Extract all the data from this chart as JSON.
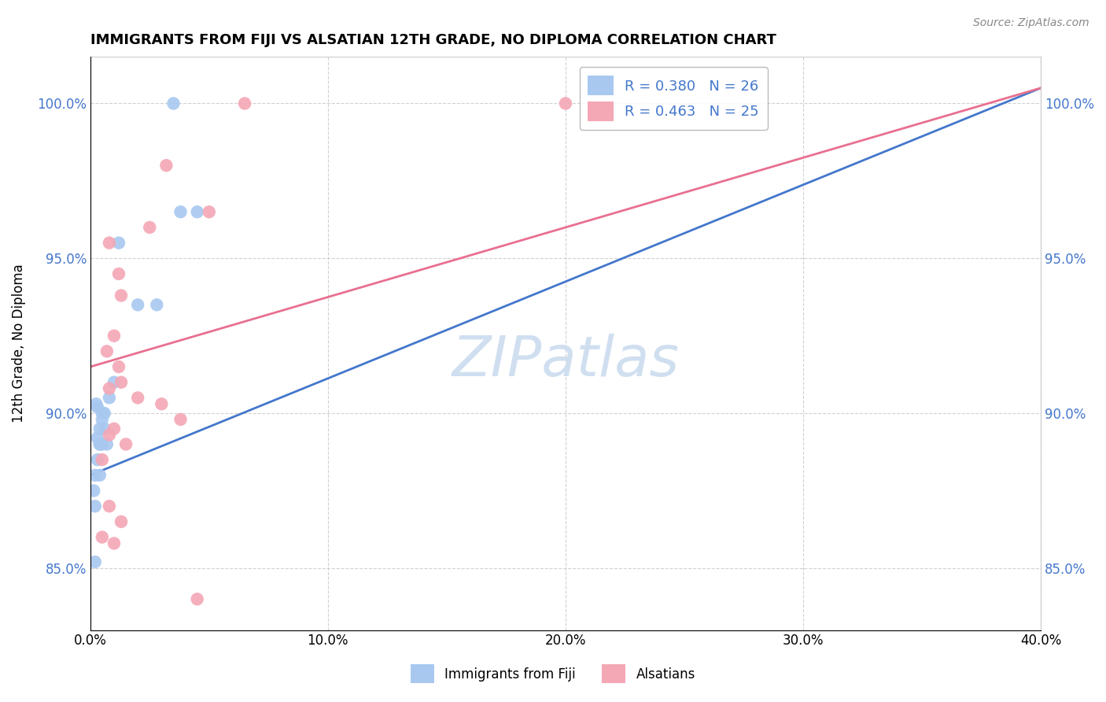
{
  "title": "IMMIGRANTS FROM FIJI VS ALSATIAN 12TH GRADE, NO DIPLOMA CORRELATION CHART",
  "source": "Source: ZipAtlas.com",
  "ylabel": "12th Grade, No Diploma",
  "x_legend_label1": "Immigrants from Fiji",
  "x_legend_label2": "Alsatians",
  "xlim": [
    0.0,
    40.0
  ],
  "ylim": [
    83.0,
    101.5
  ],
  "x_ticks": [
    0.0,
    10.0,
    20.0,
    30.0,
    40.0
  ],
  "y_ticks": [
    85.0,
    90.0,
    95.0,
    100.0
  ],
  "y_tick_labels": [
    "85.0%",
    "90.0%",
    "95.0%",
    "100.0%"
  ],
  "x_tick_labels": [
    "0.0%",
    "10.0%",
    "20.0%",
    "30.0%",
    "40.0%"
  ],
  "R1": 0.38,
  "N1": 26,
  "R2": 0.463,
  "N2": 25,
  "color1": "#a8c8f0",
  "color2": "#f4a7b5",
  "line_color1": "#4477cc",
  "line_color2": "#e87090",
  "fiji_x": [
    3.5,
    3.8,
    4.5,
    1.2,
    2.0,
    2.8,
    1.0,
    0.8,
    0.6,
    0.5,
    0.5,
    0.4,
    0.6,
    0.7,
    0.4,
    0.5,
    0.3,
    0.4,
    0.3,
    0.2,
    0.2,
    0.15,
    0.25,
    0.3,
    0.2,
    0.4
  ],
  "fiji_y": [
    100.0,
    96.5,
    96.5,
    95.5,
    93.5,
    93.5,
    91.0,
    90.5,
    90.0,
    90.0,
    89.8,
    89.5,
    89.5,
    89.0,
    89.0,
    89.0,
    89.2,
    89.0,
    88.5,
    88.0,
    87.0,
    87.5,
    90.3,
    90.2,
    85.2,
    88.0
  ],
  "alsatian_x": [
    6.5,
    3.2,
    20.0,
    5.0,
    2.5,
    0.8,
    1.2,
    1.3,
    1.0,
    0.7,
    1.2,
    1.3,
    0.8,
    2.0,
    3.0,
    3.8,
    1.0,
    0.8,
    1.5,
    0.5,
    0.8,
    1.3,
    0.5,
    1.0,
    4.5
  ],
  "alsatian_y": [
    100.0,
    98.0,
    100.0,
    96.5,
    96.0,
    95.5,
    94.5,
    93.8,
    92.5,
    92.0,
    91.5,
    91.0,
    90.8,
    90.5,
    90.3,
    89.8,
    89.5,
    89.3,
    89.0,
    88.5,
    87.0,
    86.5,
    86.0,
    85.8,
    84.0
  ],
  "watermark": "ZIPatlas",
  "watermark_fontsize": 52,
  "watermark_color": "#d0dff0",
  "trendline_x_start": 0.0,
  "trendline_x_end": 40.0,
  "blue_trend_y0": 88.0,
  "blue_trend_y1": 100.5,
  "pink_trend_y0": 91.5,
  "pink_trend_y1": 100.5
}
